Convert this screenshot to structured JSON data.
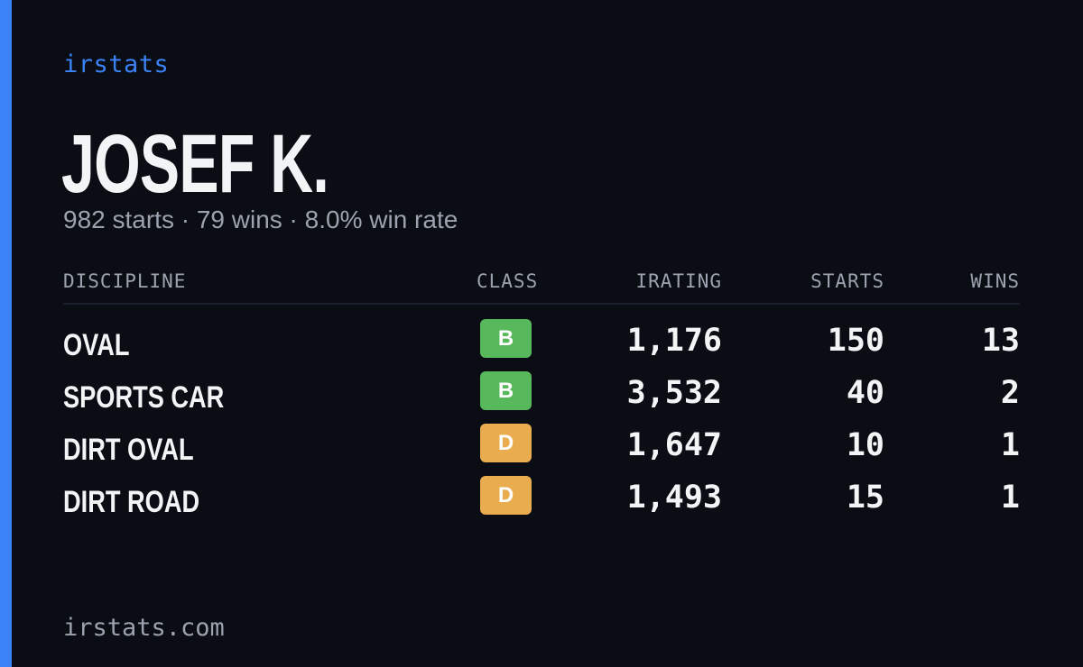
{
  "brand": "irstats",
  "driver": {
    "name": "JOSEF K.",
    "summary": "982 starts · 79 wins · 8.0% win rate"
  },
  "table": {
    "headers": {
      "discipline": "DISCIPLINE",
      "class": "CLASS",
      "irating": "IRATING",
      "starts": "STARTS",
      "wins": "WINS"
    },
    "rows": [
      {
        "discipline": "OVAL",
        "class": "B",
        "class_color": "#57b85c",
        "irating": "1,176",
        "starts": "150",
        "wins": "13"
      },
      {
        "discipline": "SPORTS CAR",
        "class": "B",
        "class_color": "#57b85c",
        "irating": "3,532",
        "starts": "40",
        "wins": "2"
      },
      {
        "discipline": "DIRT OVAL",
        "class": "D",
        "class_color": "#e9ac4f",
        "irating": "1,647",
        "starts": "10",
        "wins": "1"
      },
      {
        "discipline": "DIRT ROAD",
        "class": "D",
        "class_color": "#e9ac4f",
        "irating": "1,493",
        "starts": "15",
        "wins": "1"
      }
    ]
  },
  "footer": "irstats.com",
  "colors": {
    "accent": "#3b82f6",
    "background": "#0a0d14",
    "muted_text": "#9ca3af"
  }
}
